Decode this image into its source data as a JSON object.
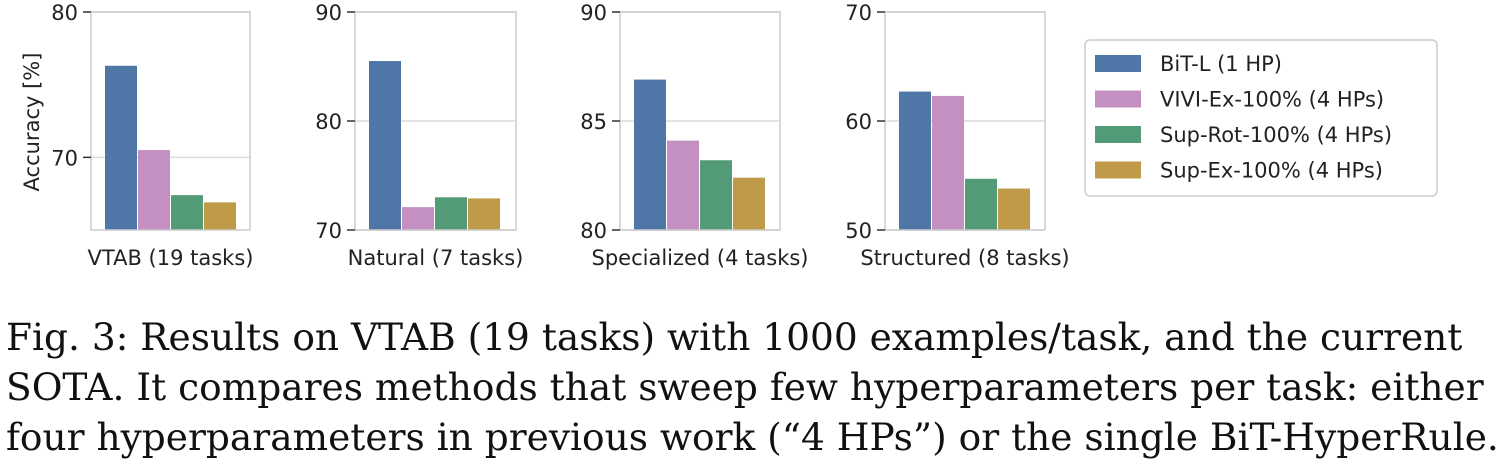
{
  "chart_data": {
    "type": "bar",
    "ylabel": "Accuracy [%]",
    "series_names": [
      "BiT-L (1 HP)",
      "VIVI-Ex-100% (4 HPs)",
      "Sup-Rot-100% (4 HPs)",
      "Sup-Ex-100% (4 HPs)"
    ],
    "colors": [
      "#4e76a6",
      "#c490c2",
      "#539a76",
      "#bf9b49"
    ],
    "legend": "right",
    "grid": "y",
    "panels": [
      {
        "label": "VTAB (19 tasks)",
        "ylim": [
          65,
          80
        ],
        "yticks": [
          70,
          80
        ],
        "tick_labels": [
          "70",
          "80"
        ],
        "values": [
          76.3,
          70.5,
          67.4,
          66.9
        ]
      },
      {
        "label": "Natural (7 tasks)",
        "ylim": [
          70,
          90
        ],
        "yticks": [
          70,
          80,
          90
        ],
        "tick_labels": [
          "70",
          "80",
          "90"
        ],
        "values": [
          85.5,
          72.1,
          73.0,
          72.9
        ]
      },
      {
        "label": "Specialized (4 tasks)",
        "ylim": [
          80,
          90
        ],
        "yticks": [
          80,
          85,
          90
        ],
        "tick_labels": [
          "80",
          "85",
          "90"
        ],
        "values": [
          86.9,
          84.1,
          83.2,
          82.4
        ]
      },
      {
        "label": "Structured (8 tasks)",
        "ylim": [
          50,
          70
        ],
        "yticks": [
          50,
          60,
          70
        ],
        "tick_labels": [
          "50",
          "60",
          "70"
        ],
        "values": [
          62.7,
          62.3,
          54.7,
          53.8
        ]
      }
    ]
  },
  "caption": {
    "line1": "Fig. 3: Results on VTAB (19 tasks) with 1000 examples/task, and the current",
    "line2": "SOTA. It compares methods that sweep few hyperparameters per task: either",
    "line3": "four hyperparameters in previous work (“4 HPs”) or the single BiT-HyperRule."
  }
}
